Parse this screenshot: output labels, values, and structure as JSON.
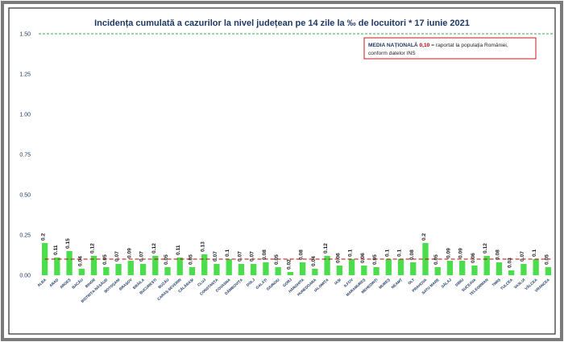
{
  "chart_data": {
    "type": "bar",
    "title": "Incidența cumulată a cazurilor la nivel județean pe 14 zile la ‰ de locuitori *  17 iunie 2021",
    "categories": [
      "ALBA",
      "ARAD",
      "ARGEȘ",
      "BACĂU",
      "BIHOR",
      "BISTRIȚA-NĂSĂUD",
      "BOTOȘANI",
      "BRAȘOV",
      "BRĂILA",
      "BUCUREȘTI",
      "BUZĂU",
      "CARAȘ-SEVERIN",
      "CĂLĂRAȘI",
      "CLUJ",
      "CONSTANȚA",
      "COVASNA",
      "DÂMBOVIȚA",
      "DOLJ",
      "GALAȚI",
      "GIURGIU",
      "GORJ",
      "HARGHITA",
      "HUNEDOARA",
      "IALOMIȚA",
      "IAȘI",
      "ILFOV",
      "MARAMUREȘ",
      "MEHEDINȚI",
      "MUREȘ",
      "NEAMȚ",
      "OLT",
      "PRAHOVA",
      "SATU MARE",
      "SĂLAJ",
      "SIBIU",
      "SUCEAVA",
      "TELEORMAN",
      "TIMIȘ",
      "TULCEA",
      "VASLUI",
      "VÂLCEA",
      "VRANCEA"
    ],
    "values": [
      0.2,
      0.11,
      0.15,
      0.04,
      0.12,
      0.05,
      0.07,
      0.09,
      0.07,
      0.12,
      0.05,
      0.11,
      0.05,
      0.13,
      0.07,
      0.1,
      0.07,
      0.07,
      0.08,
      0.05,
      0.02,
      0.08,
      0.04,
      0.12,
      0.06,
      0.1,
      0.06,
      0.05,
      0.1,
      0.1,
      0.08,
      0.2,
      0.05,
      0.09,
      0.09,
      0.06,
      0.12,
      0.08,
      0.03,
      0.07,
      0.1,
      0.05
    ],
    "value_labels": [
      "0.2",
      "0.11",
      "0.15",
      "0.04",
      "0.12",
      "0.05",
      "0.07",
      "0.09",
      "0.07",
      "0.12",
      "0.05",
      "0.11",
      "0.05",
      "0.13",
      "0.07",
      "0.1",
      "0.07",
      "0.07",
      "0.08",
      "0.05",
      "0.02",
      "0.08",
      "0.04",
      "0.12",
      "0.06",
      "0.1",
      "0.06",
      "0.05",
      "0.1",
      "0.1",
      "0.08",
      "0.2",
      "0.05",
      "0.09",
      "0.09",
      "0.06",
      "0.12",
      "0.08",
      "0.03",
      "0.07",
      "0.1",
      "0.05"
    ],
    "ylim": [
      0,
      1.5
    ],
    "yticks": [
      "0.00",
      "0.25",
      "0.50",
      "0.75",
      "1.00",
      "1.25",
      "1.50"
    ],
    "national_average": 0.1,
    "reference_line": 1.5,
    "grid": false,
    "colors": {
      "bar": "#4cdd4c",
      "avg_line": "#c00000",
      "ref_line": "#3aa84a",
      "text": "#1f3864"
    },
    "annotation": {
      "bold_label": "MEDIA NAȚIONALĂ",
      "value": "0,10",
      "text_line1": " = raportat la populația României,",
      "text_line2": "conform datelor INS"
    }
  }
}
